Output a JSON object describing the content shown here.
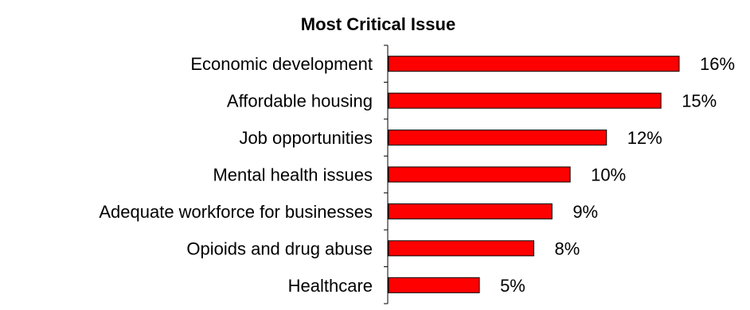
{
  "chart_data": {
    "type": "bar",
    "orientation": "horizontal",
    "title": "Most Critical Issue",
    "categories": [
      "Economic development",
      "Affordable housing",
      "Job opportunities",
      "Mental health issues",
      "Adequate workforce for businesses",
      "Opioids and drug abuse",
      "Healthcare"
    ],
    "values": [
      16,
      15,
      12,
      10,
      9,
      8,
      5
    ],
    "value_labels": [
      "16%",
      "15%",
      "12%",
      "10%",
      "9%",
      "8%",
      "5%"
    ],
    "xlim": [
      0,
      16
    ],
    "grid": false,
    "legend": "none",
    "colors": {
      "bar": "#ff0000",
      "outline": "#000000"
    }
  }
}
